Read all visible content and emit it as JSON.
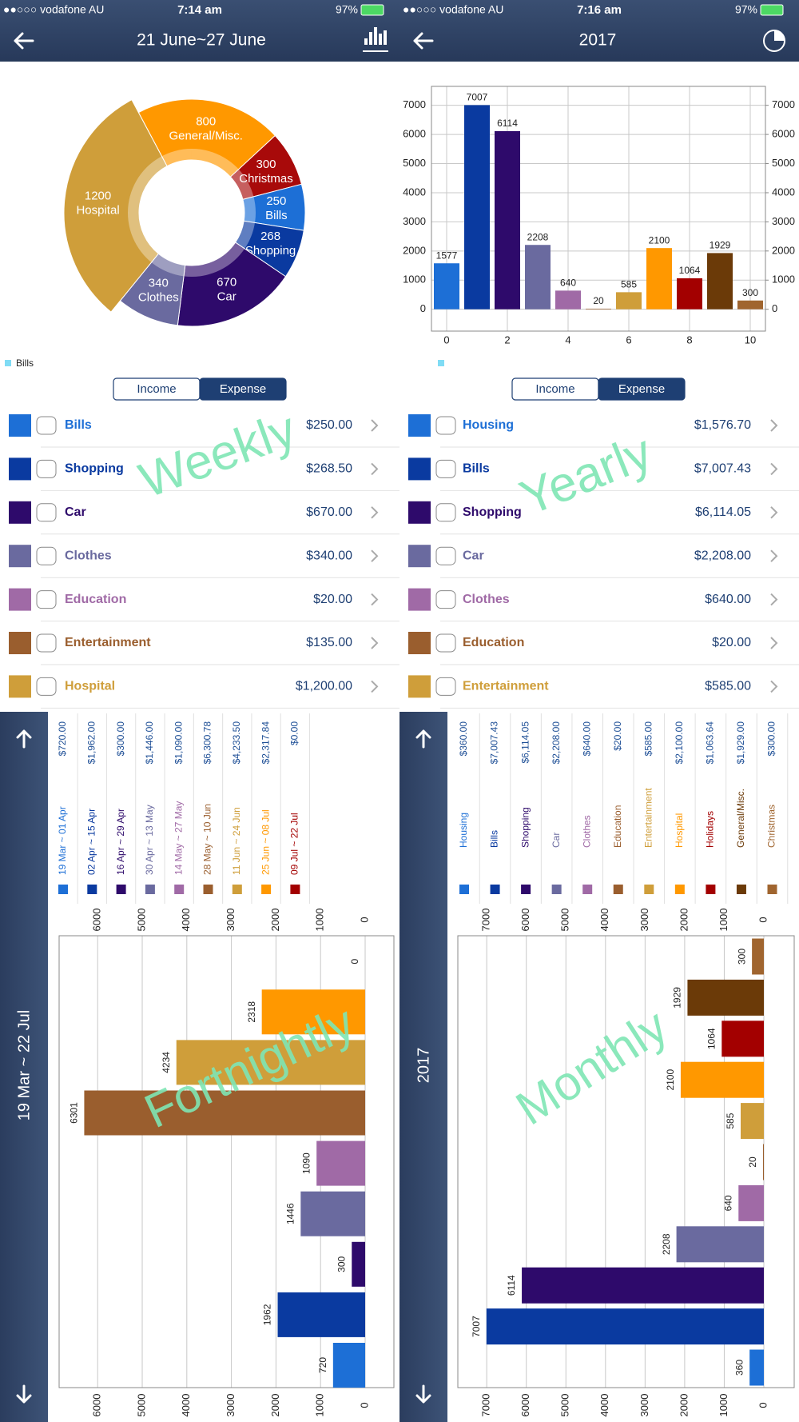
{
  "screens": [
    {
      "status": {
        "carrier": "●●○○○ vodafone AU",
        "time": "7:14 am",
        "battery": "97%"
      },
      "nav_title": "21 June~27 June",
      "watermark": "Weekly",
      "segments": [
        "Income",
        "Expense"
      ],
      "rows": [
        {
          "name": "Bills",
          "amount": "$250.00",
          "color": "#1d6fd6"
        },
        {
          "name": "Shopping",
          "amount": "$268.50",
          "color": "#0a3aa0"
        },
        {
          "name": "Car",
          "amount": "$670.00",
          "color": "#2e0a6b"
        },
        {
          "name": "Clothes",
          "amount": "$340.00",
          "color": "#6a6a9f"
        },
        {
          "name": "Education",
          "amount": "$20.00",
          "color": "#a06aa6"
        },
        {
          "name": "Entertainment",
          "amount": "$135.00",
          "color": "#9a5e2e"
        },
        {
          "name": "Hospital",
          "amount": "$1,200.00",
          "color": "#cf9e3a"
        }
      ]
    },
    {
      "status": {
        "carrier": "●●○○○ vodafone AU",
        "time": "7:16 am",
        "battery": "97%"
      },
      "nav_title": "2017",
      "watermark": "Yearly",
      "segments": [
        "Income",
        "Expense"
      ],
      "rows": [
        {
          "name": "Housing",
          "amount": "$1,576.70",
          "color": "#1d6fd6"
        },
        {
          "name": "Bills",
          "amount": "$7,007.43",
          "color": "#0a3aa0"
        },
        {
          "name": "Shopping",
          "amount": "$6,114.05",
          "color": "#2e0a6b"
        },
        {
          "name": "Car",
          "amount": "$2,208.00",
          "color": "#6a6a9f"
        },
        {
          "name": "Clothes",
          "amount": "$640.00",
          "color": "#a06aa6"
        },
        {
          "name": "Education",
          "amount": "$20.00",
          "color": "#9a5e2e"
        },
        {
          "name": "Entertainment",
          "amount": "$585.00",
          "color": "#cf9e3a"
        }
      ]
    }
  ],
  "bottom_panels": [
    {
      "range": "19 Mar ~ 22 Jul",
      "watermark": "Fortnightly"
    },
    {
      "range": "2017",
      "watermark": "Monthly"
    }
  ],
  "chart_data": [
    {
      "type": "pie",
      "categories": [
        "General/Misc.",
        "Christmas",
        "Bills",
        "Shopping",
        "Car",
        "Clothes",
        "Hospital"
      ],
      "values": [
        800,
        300,
        250,
        268,
        670,
        340,
        1200
      ],
      "colors": [
        "#ff9800",
        "#a80a0a",
        "#1d6fd6",
        "#0a3aa0",
        "#2e0a6b",
        "#6a6a9f",
        "#cf9e3a"
      ],
      "legend": [
        "Bills"
      ],
      "legend_color": "#80dcf5"
    },
    {
      "type": "bar",
      "x": [
        0,
        1,
        2,
        3,
        4,
        5,
        6,
        7,
        8,
        9,
        10
      ],
      "values": [
        1577,
        7007,
        6114,
        2208,
        640,
        20,
        585,
        2100,
        1064,
        1929,
        300
      ],
      "colors": [
        "#1d6fd6",
        "#0a3aa0",
        "#2e0a6b",
        "#6a6a9f",
        "#a06aa6",
        "#9a5e2e",
        "#cf9e3a",
        "#ff9800",
        "#a30000",
        "#6b3a08",
        "#a0652f"
      ],
      "xlim": [
        -0.5,
        10.5
      ],
      "xticks": [
        0,
        2,
        4,
        6,
        8,
        10
      ],
      "ylim": [
        -750,
        7650
      ],
      "yticks": [
        0,
        1000,
        2000,
        3000,
        4000,
        5000,
        6000,
        7000
      ],
      "y2lim": [
        -750,
        7650
      ],
      "y2ticks": [
        0,
        1000,
        2000,
        3000,
        4000,
        5000,
        6000,
        7000
      ],
      "grid": true,
      "legend_color": "#80dcf5"
    },
    {
      "type": "barh",
      "categories": [
        "19 Mar ~ 01 Apr",
        "02 Apr ~ 15 Apr",
        "16 Apr ~ 29 Apr",
        "30 Apr ~ 13 May",
        "14 May ~ 27 May",
        "28 May ~ 10 Jun",
        "11 Jun ~ 24 Jun",
        "25 Jun ~ 08 Jul",
        "09 Jul ~ 22 Jul"
      ],
      "values": [
        720,
        1962,
        300,
        1446,
        1090,
        6301,
        4234,
        2318,
        0
      ],
      "legend_amounts": [
        "$720.00",
        "$1,962.00",
        "$300.00",
        "$1,446.00",
        "$1,090.00",
        "$6,300.78",
        "$4,233.50",
        "$2,317.84",
        "$0.00"
      ],
      "colors": [
        "#1d6fd6",
        "#0a3aa0",
        "#2e0a6b",
        "#6a6a9f",
        "#a06aa6",
        "#9a5e2e",
        "#cf9e3a",
        "#ff9800",
        "#a30000"
      ],
      "xlim": [
        -645,
        6864
      ],
      "xticks": [
        0,
        1000,
        2000,
        3000,
        4000,
        5000,
        6000
      ],
      "grid": true
    },
    {
      "type": "barh",
      "categories": [
        "Housing",
        "Bills",
        "Shopping",
        "Car",
        "Clothes",
        "Education",
        "Entertainment",
        "Hospital",
        "Holidays",
        "General/Misc.",
        "Christmas"
      ],
      "values": [
        360,
        7007,
        6114,
        2208,
        640,
        20,
        585,
        2100,
        1064,
        1929,
        300
      ],
      "legend_amounts": [
        "$360.00",
        "$7,007.43",
        "$6,114.05",
        "$2,208.00",
        "$640.00",
        "$20.00",
        "$585.00",
        "$2,100.00",
        "$1,063.64",
        "$1,929.00",
        "$300.00"
      ],
      "colors": [
        "#1d6fd6",
        "#0a3aa0",
        "#2e0a6b",
        "#6a6a9f",
        "#a06aa6",
        "#9a5e2e",
        "#cf9e3a",
        "#ff9800",
        "#a30000",
        "#6b3a08",
        "#a0652f"
      ],
      "xlim": [
        -767,
        7730
      ],
      "xticks": [
        0,
        1000,
        2000,
        3000,
        4000,
        5000,
        6000,
        7000
      ],
      "grid": true
    }
  ]
}
